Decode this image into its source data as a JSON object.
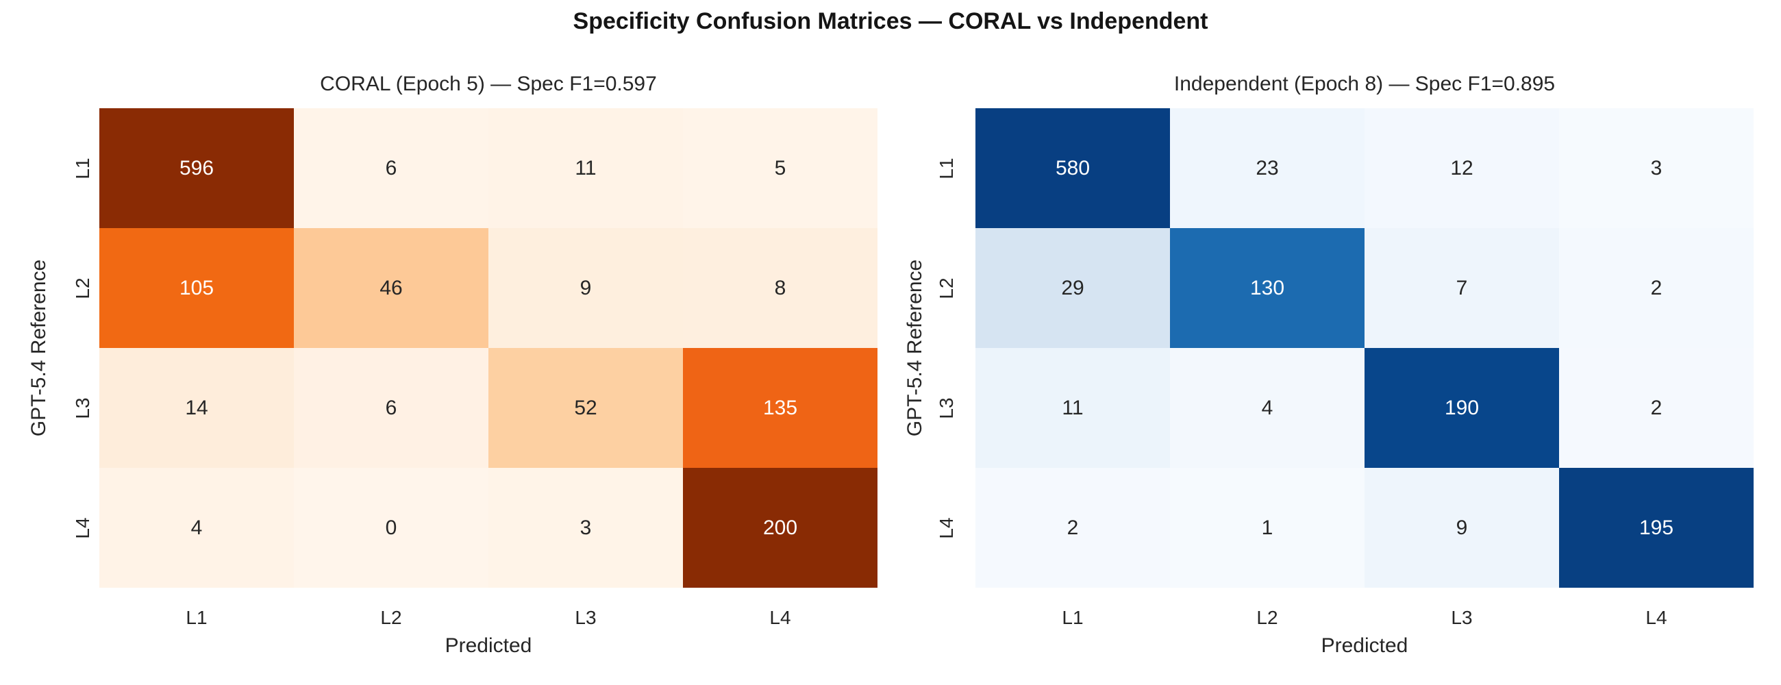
{
  "figure": {
    "title": "Specificity Confusion Matrices — CORAL vs Independent",
    "background_color": "#ffffff",
    "title_color": "#151515",
    "text_color": "#262626"
  },
  "chart_data": [
    {
      "type": "heatmap",
      "id": "coral",
      "title": "CORAL (Epoch 5) — Spec F1=0.597",
      "xlabel": "Predicted",
      "ylabel": "GPT-5.4 Reference",
      "x_ticklabels": [
        "L1",
        "L2",
        "L3",
        "L4"
      ],
      "y_ticklabels": [
        "L1",
        "L2",
        "L3",
        "L4"
      ],
      "values": [
        [
          596,
          6,
          11,
          5
        ],
        [
          105,
          46,
          9,
          8
        ],
        [
          14,
          6,
          52,
          135
        ],
        [
          4,
          0,
          3,
          200
        ]
      ],
      "colormap": "Oranges",
      "shading": "row-normalized",
      "grid": false,
      "legend": "none",
      "cell_colors": [
        [
          "#8a2b04",
          "#fff4e9",
          "#fff3e7",
          "#fff4e9"
        ],
        [
          "#f16913",
          "#fdc997",
          "#feefde",
          "#feefdf"
        ],
        [
          "#feeddb",
          "#fff1e4",
          "#fdd0a2",
          "#ef6415"
        ],
        [
          "#fff3e7",
          "#fff5eb",
          "#fff4e8",
          "#892b04"
        ]
      ]
    },
    {
      "type": "heatmap",
      "id": "independent",
      "title": "Independent (Epoch 8) — Spec F1=0.895",
      "xlabel": "Predicted",
      "ylabel": "GPT-5.4 Reference",
      "x_ticklabels": [
        "L1",
        "L2",
        "L3",
        "L4"
      ],
      "y_ticklabels": [
        "L1",
        "L2",
        "L3",
        "L4"
      ],
      "values": [
        [
          580,
          23,
          12,
          3
        ],
        [
          29,
          130,
          7,
          2
        ],
        [
          11,
          4,
          190,
          2
        ],
        [
          2,
          1,
          9,
          195
        ]
      ],
      "colormap": "Blues",
      "shading": "row-normalized",
      "grid": false,
      "legend": "none",
      "cell_colors": [
        [
          "#083f82",
          "#eff6fd",
          "#f3f8fe",
          "#f6fafe"
        ],
        [
          "#d6e4f2",
          "#1c6bb0",
          "#eef5fc",
          "#f4f9fe"
        ],
        [
          "#ecf4fb",
          "#f3f8fd",
          "#08468b",
          "#f5f9fe"
        ],
        [
          "#f5f9fe",
          "#f6fafe",
          "#eef5fc",
          "#084082"
        ]
      ]
    }
  ]
}
